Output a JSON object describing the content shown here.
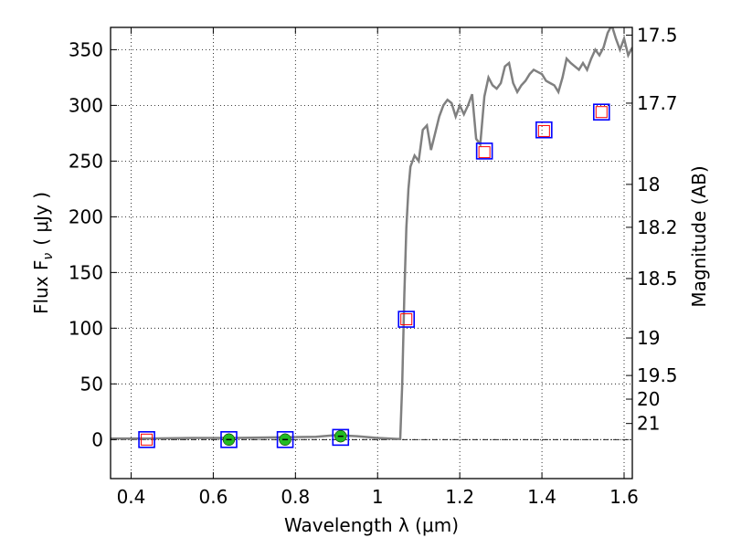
{
  "chart_data": {
    "type": "scatter",
    "xlabel": "Wavelength  λ (μm)",
    "ylabel": "Flux  F",
    "ylabel_sub": "ν",
    "ylabel_unit": "( μJy )",
    "y2label": "Magnitude (AB)",
    "xlim": [
      0.35,
      1.62
    ],
    "ylim": [
      -35,
      370
    ],
    "grid": true,
    "x_ticks": [
      {
        "v": 0.4,
        "label": "0.4"
      },
      {
        "v": 0.6,
        "label": "0.6"
      },
      {
        "v": 0.8,
        "label": "0.8"
      },
      {
        "v": 1.0,
        "label": "1"
      },
      {
        "v": 1.2,
        "label": "1.2"
      },
      {
        "v": 1.4,
        "label": "1.4"
      },
      {
        "v": 1.6,
        "label": "1.6"
      }
    ],
    "y_ticks": [
      {
        "v": 0,
        "label": "0"
      },
      {
        "v": 50,
        "label": "50"
      },
      {
        "v": 100,
        "label": "100"
      },
      {
        "v": 150,
        "label": "150"
      },
      {
        "v": 200,
        "label": "200"
      },
      {
        "v": 250,
        "label": "250"
      },
      {
        "v": 300,
        "label": "300"
      },
      {
        "v": 350,
        "label": "350"
      }
    ],
    "y2_ticks": [
      {
        "mag": 17.5,
        "label": "17.5"
      },
      {
        "mag": 17.7,
        "label": "17.7"
      },
      {
        "mag": 18,
        "label": "18"
      },
      {
        "mag": 18.2,
        "label": "18.2"
      },
      {
        "mag": 18.5,
        "label": "18.5"
      },
      {
        "mag": 19,
        "label": "19"
      },
      {
        "mag": 19.5,
        "label": "19.5"
      },
      {
        "mag": 20,
        "label": "20"
      },
      {
        "mag": 21,
        "label": "21"
      }
    ],
    "series": [
      {
        "kind": "line",
        "color": "#808080",
        "x": [
          0.35,
          0.45,
          0.55,
          0.65,
          0.75,
          0.85,
          0.9,
          0.95,
          1.0,
          1.055,
          1.06,
          1.065,
          1.07,
          1.075,
          1.08,
          1.09,
          1.1,
          1.11,
          1.12,
          1.13,
          1.14,
          1.15,
          1.16,
          1.17,
          1.18,
          1.19,
          1.2,
          1.21,
          1.22,
          1.23,
          1.24,
          1.25,
          1.26,
          1.27,
          1.28,
          1.29,
          1.3,
          1.31,
          1.32,
          1.33,
          1.34,
          1.35,
          1.36,
          1.37,
          1.38,
          1.39,
          1.4,
          1.41,
          1.42,
          1.43,
          1.44,
          1.45,
          1.46,
          1.47,
          1.48,
          1.49,
          1.5,
          1.51,
          1.52,
          1.53,
          1.54,
          1.55,
          1.56,
          1.57,
          1.58,
          1.59,
          1.6,
          1.61,
          1.62
        ],
        "y": [
          1,
          1,
          1.5,
          1.5,
          2,
          2.5,
          4,
          3,
          1.5,
          0.5,
          50,
          130,
          190,
          225,
          245,
          255,
          250,
          278,
          282,
          260,
          275,
          290,
          300,
          305,
          302,
          290,
          300,
          292,
          300,
          310,
          270,
          265,
          308,
          325,
          318,
          315,
          320,
          335,
          338,
          320,
          312,
          318,
          322,
          328,
          332,
          330,
          328,
          322,
          320,
          318,
          312,
          325,
          342,
          338,
          335,
          332,
          338,
          332,
          342,
          350,
          345,
          352,
          365,
          372,
          360,
          350,
          360,
          345,
          352
        ]
      },
      {
        "kind": "open-square-red",
        "color": "#ff0000",
        "x": [
          0.438,
          1.07,
          1.26,
          1.405,
          1.545
        ],
        "y": [
          0,
          108,
          258,
          277,
          294
        ]
      },
      {
        "kind": "open-square-blue",
        "color": "#0000ff",
        "x": [
          0.438,
          0.638,
          0.775,
          0.91,
          1.07,
          1.26,
          1.405,
          1.545
        ],
        "y": [
          0,
          0,
          0,
          2,
          108,
          259,
          278,
          294
        ]
      },
      {
        "kind": "filled-circle-green",
        "color": "#22bb22",
        "x": [
          0.638,
          0.775,
          0.91
        ],
        "y": [
          0,
          0,
          3
        ]
      }
    ]
  }
}
